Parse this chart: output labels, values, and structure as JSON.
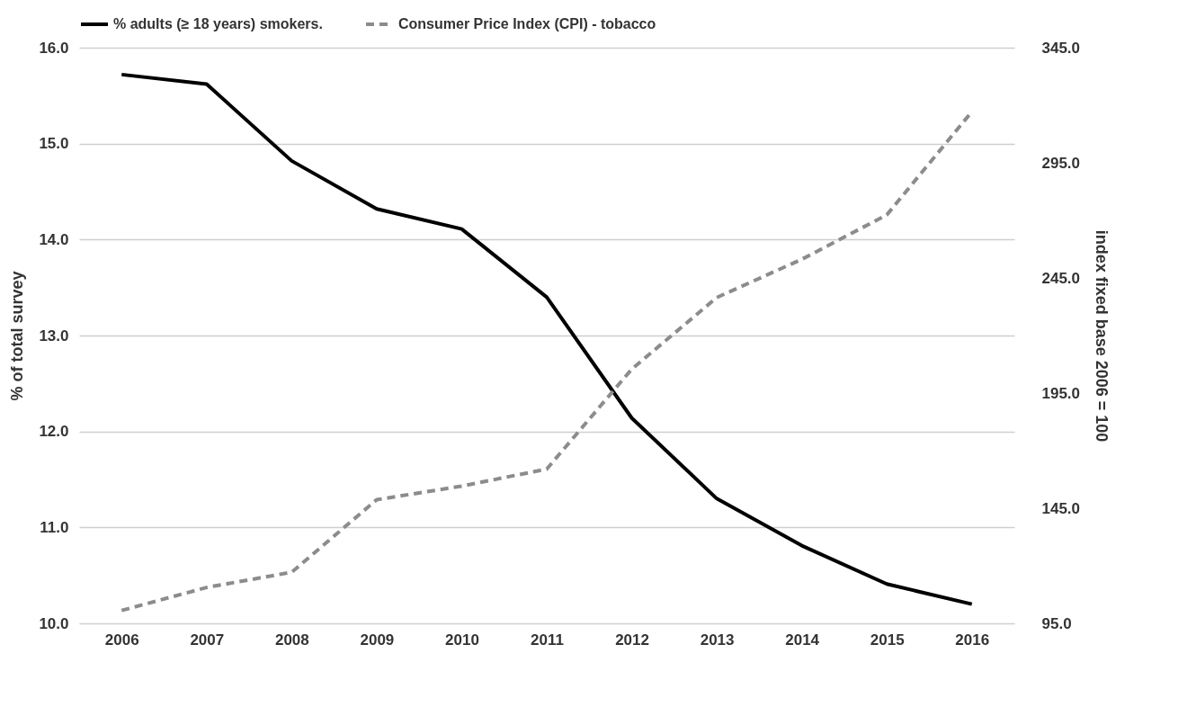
{
  "chart_data": {
    "type": "line",
    "categories": [
      "2006",
      "2007",
      "2008",
      "2009",
      "2010",
      "2011",
      "2012",
      "2013",
      "2014",
      "2015",
      "2016"
    ],
    "ylabel": "% of total survey",
    "y2label": "index fixed base 2006 = 100",
    "ylim": [
      10,
      16
    ],
    "yticks": [
      {
        "value": 10,
        "label": "10.0"
      },
      {
        "value": 11,
        "label": "11.0"
      },
      {
        "value": 12,
        "label": "12.0"
      },
      {
        "value": 13,
        "label": "13.0"
      },
      {
        "value": 14,
        "label": "14.0"
      },
      {
        "value": 15,
        "label": "15.0"
      },
      {
        "value": 16,
        "label": "16.0"
      }
    ],
    "y2lim": [
      95,
      345
    ],
    "y2ticks": [
      {
        "value": 95,
        "label": "95.0"
      },
      {
        "value": 145,
        "label": "145.0"
      },
      {
        "value": 195,
        "label": "195.0"
      },
      {
        "value": 245,
        "label": "245.0"
      },
      {
        "value": 295,
        "label": "295.0"
      },
      {
        "value": 345,
        "label": "345.0"
      }
    ],
    "grid": "y",
    "legend": "top",
    "marker": "none",
    "series": [
      {
        "name": "% adults (≥ 18 years) smokers.",
        "color": "#000000",
        "line_style": "solid",
        "values": [
          15.72,
          15.62,
          14.82,
          14.32,
          14.11,
          13.4,
          12.14,
          11.3,
          10.81,
          10.41,
          10.2
        ]
      },
      {
        "name": "Consumer Price Index (CPI) - tobacco",
        "color": "#8c8c8c",
        "line_style": "dashed",
        "axis": "y2",
        "values": [
          100.6,
          110.6,
          117.2,
          148.7,
          154.6,
          162,
          205.4,
          236.5,
          253.1,
          272.4,
          317.2
        ]
      }
    ]
  }
}
